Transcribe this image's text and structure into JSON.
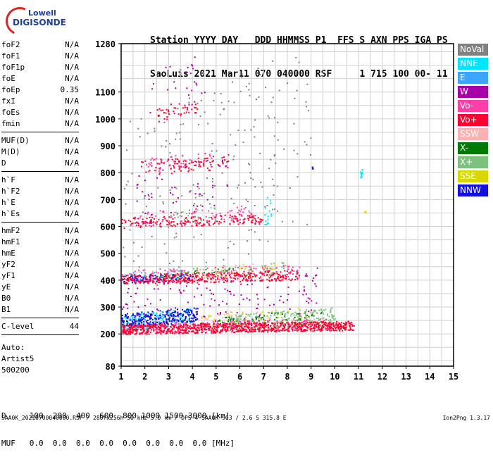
{
  "logo": {
    "line1": "Lowell",
    "line2": "DIGISONDE"
  },
  "header": {
    "line1": "Station YYYY DAY   DDD HHMMSS P1  FFS S AXN PPS IGA PS",
    "line2": "SaoLuis 2021 Mar11 070 040000 RSF     1 715 100 00- 11"
  },
  "params_groups": [
    [
      {
        "label": "foF2",
        "value": "N/A"
      },
      {
        "label": "foF1",
        "value": "N/A"
      },
      {
        "label": "foF1p",
        "value": "N/A"
      },
      {
        "label": "foE",
        "value": "N/A"
      },
      {
        "label": "foEp",
        "value": "0.35"
      },
      {
        "label": "fxI",
        "value": "N/A"
      },
      {
        "label": "foEs",
        "value": "N/A"
      },
      {
        "label": "fmin",
        "value": "N/A"
      }
    ],
    [
      {
        "label": "MUF(D)",
        "value": "N/A"
      },
      {
        "label": "M(D)",
        "value": "N/A"
      },
      {
        "label": "D",
        "value": "N/A"
      }
    ],
    [
      {
        "label": "h`F",
        "value": "N/A"
      },
      {
        "label": "h`F2",
        "value": "N/A"
      },
      {
        "label": "h`E",
        "value": "N/A"
      },
      {
        "label": "h`Es",
        "value": "N/A"
      }
    ],
    [
      {
        "label": "hmF2",
        "value": "N/A"
      },
      {
        "label": "hmF1",
        "value": "N/A"
      },
      {
        "label": "hmE",
        "value": "N/A"
      },
      {
        "label": "yF2",
        "value": "N/A"
      },
      {
        "label": "yF1",
        "value": "N/A"
      },
      {
        "label": "yE",
        "value": "N/A"
      },
      {
        "label": "B0",
        "value": "N/A"
      },
      {
        "label": "B1",
        "value": "N/A"
      }
    ],
    [
      {
        "label": "C-level",
        "value": "44"
      }
    ]
  ],
  "auto_lines": [
    "Auto:",
    "Artist5",
    "500200"
  ],
  "legend": [
    {
      "label": "NoVal",
      "color": "#808080"
    },
    {
      "label": "NNE",
      "color": "#00e5ff"
    },
    {
      "label": "E",
      "color": "#3ba5ff"
    },
    {
      "label": "W",
      "color": "#a800a8"
    },
    {
      "label": "Vo-",
      "color": "#ff3fa8"
    },
    {
      "label": "Vo+",
      "color": "#ff0030"
    },
    {
      "label": "SSW",
      "color": "#ffb0b0"
    },
    {
      "label": "X-",
      "color": "#007a00"
    },
    {
      "label": "X+",
      "color": "#7cc27c"
    },
    {
      "label": "SSE",
      "color": "#d8d800"
    },
    {
      "label": "NNW",
      "color": "#1010e0"
    }
  ],
  "bottom": {
    "line1": "D     100  200  400  600  800 1000 1500 3000 [km]",
    "line2": "MUF   0.0  0.0  0.0  0.0  0.0  0.0  0.0  0.0 [MHz]"
  },
  "footer": "SAA0K_20210700040000.RSF / 280fx256h 50 kHz 5.0 km / DPS-4 SAA0K 903 / 2.6 S 315.8 E",
  "version": "Ion2Png 1.3.17",
  "chart_data": {
    "type": "scatter",
    "title": "",
    "xlabel": "",
    "ylabel": "",
    "x_ticks": [
      1,
      2,
      3,
      4,
      5,
      6,
      7,
      8,
      9,
      10,
      11,
      12,
      13,
      14,
      15
    ],
    "y_ticks": [
      80,
      200,
      300,
      400,
      500,
      600,
      700,
      800,
      900,
      1000,
      1100,
      1280
    ],
    "xlim": [
      1,
      15
    ],
    "ylim": [
      80,
      1280
    ],
    "grid": true,
    "legend_position": "right",
    "series": [
      {
        "name": "Vo+",
        "color": "#ff0030",
        "clusters": [
          {
            "fmin": 1.0,
            "fmax": 10.8,
            "hmin": 200,
            "hmax": 250,
            "n": 900
          },
          {
            "fmin": 1.0,
            "fmax": 8.5,
            "hmin": 385,
            "hmax": 440,
            "n": 350
          },
          {
            "fmin": 1.0,
            "fmax": 7.0,
            "hmin": 595,
            "hmax": 650,
            "n": 180
          },
          {
            "fmin": 1.8,
            "fmax": 5.5,
            "hmin": 790,
            "hmax": 870,
            "n": 90
          },
          {
            "fmin": 2.5,
            "fmax": 4.2,
            "hmin": 990,
            "hmax": 1070,
            "n": 40
          }
        ]
      },
      {
        "name": "NNW",
        "color": "#1010e0",
        "clusters": [
          {
            "fmin": 1.0,
            "fmax": 4.2,
            "hmin": 225,
            "hmax": 300,
            "n": 260
          },
          {
            "fmin": 1.0,
            "fmax": 4.0,
            "hmin": 390,
            "hmax": 430,
            "n": 90
          },
          {
            "fmin": 9.0,
            "fmax": 9.1,
            "hmin": 815,
            "hmax": 825,
            "n": 4
          }
        ]
      },
      {
        "name": "Vo-",
        "color": "#ff3fa8",
        "clusters": [
          {
            "fmin": 1.0,
            "fmax": 10.0,
            "hmin": 200,
            "hmax": 260,
            "n": 250
          },
          {
            "fmin": 1.0,
            "fmax": 8.5,
            "hmin": 390,
            "hmax": 460,
            "n": 130
          },
          {
            "fmin": 1.5,
            "fmax": 6.5,
            "hmin": 600,
            "hmax": 680,
            "n": 80
          },
          {
            "fmin": 2.0,
            "fmax": 5.0,
            "hmin": 800,
            "hmax": 880,
            "n": 50
          }
        ]
      },
      {
        "name": "X+",
        "color": "#7cc27c",
        "clusters": [
          {
            "fmin": 5.5,
            "fmax": 10.0,
            "hmin": 210,
            "hmax": 300,
            "n": 200
          },
          {
            "fmin": 3.0,
            "fmax": 8.0,
            "hmin": 400,
            "hmax": 470,
            "n": 60
          },
          {
            "fmin": 3.0,
            "fmax": 5.0,
            "hmin": 600,
            "hmax": 680,
            "n": 30
          }
        ]
      },
      {
        "name": "X-",
        "color": "#007a00",
        "clusters": [
          {
            "fmin": 5.0,
            "fmax": 9.5,
            "hmin": 220,
            "hmax": 290,
            "n": 80
          },
          {
            "fmin": 2.5,
            "fmax": 6.5,
            "hmin": 400,
            "hmax": 450,
            "n": 30
          }
        ]
      },
      {
        "name": "NNE",
        "color": "#00e5ff",
        "clusters": [
          {
            "fmin": 1.0,
            "fmax": 4.0,
            "hmin": 210,
            "hmax": 300,
            "n": 120
          },
          {
            "fmin": 11.05,
            "fmax": 11.15,
            "hmin": 780,
            "hmax": 820,
            "n": 12
          },
          {
            "fmin": 7.0,
            "fmax": 7.3,
            "hmin": 560,
            "hmax": 740,
            "n": 15
          }
        ]
      },
      {
        "name": "E",
        "color": "#3ba5ff",
        "clusters": [
          {
            "fmin": 1.0,
            "fmax": 3.5,
            "hmin": 220,
            "hmax": 280,
            "n": 70
          },
          {
            "fmin": 1.0,
            "fmax": 4.0,
            "hmin": 400,
            "hmax": 440,
            "n": 40
          }
        ]
      },
      {
        "name": "W",
        "color": "#a800a8",
        "clusters": [
          {
            "fmin": 1.0,
            "fmax": 9.5,
            "hmin": 200,
            "hmax": 460,
            "n": 150
          },
          {
            "fmin": 1.5,
            "fmax": 5.5,
            "hmin": 600,
            "hmax": 880,
            "n": 60
          },
          {
            "fmin": 2.0,
            "fmax": 4.5,
            "hmin": 980,
            "hmax": 1270,
            "n": 30
          }
        ]
      },
      {
        "name": "SSW",
        "color": "#ffb0b0",
        "clusters": [
          {
            "fmin": 1.0,
            "fmax": 9.5,
            "hmin": 200,
            "hmax": 300,
            "n": 100
          },
          {
            "fmin": 1.5,
            "fmax": 8.0,
            "hmin": 390,
            "hmax": 470,
            "n": 40
          }
        ]
      },
      {
        "name": "SSE",
        "color": "#d8d800",
        "clusters": [
          {
            "fmin": 4.0,
            "fmax": 9.0,
            "hmin": 220,
            "hmax": 300,
            "n": 60
          },
          {
            "fmin": 3.0,
            "fmax": 7.5,
            "hmin": 400,
            "hmax": 460,
            "n": 40
          },
          {
            "fmin": 11.2,
            "fmax": 11.3,
            "hmin": 650,
            "hmax": 660,
            "n": 3
          }
        ]
      },
      {
        "name": "NoVal",
        "color": "#808080",
        "clusters": [
          {
            "fmin": 1.0,
            "fmax": 9.0,
            "hmin": 300,
            "hmax": 1280,
            "n": 220
          }
        ]
      }
    ]
  }
}
